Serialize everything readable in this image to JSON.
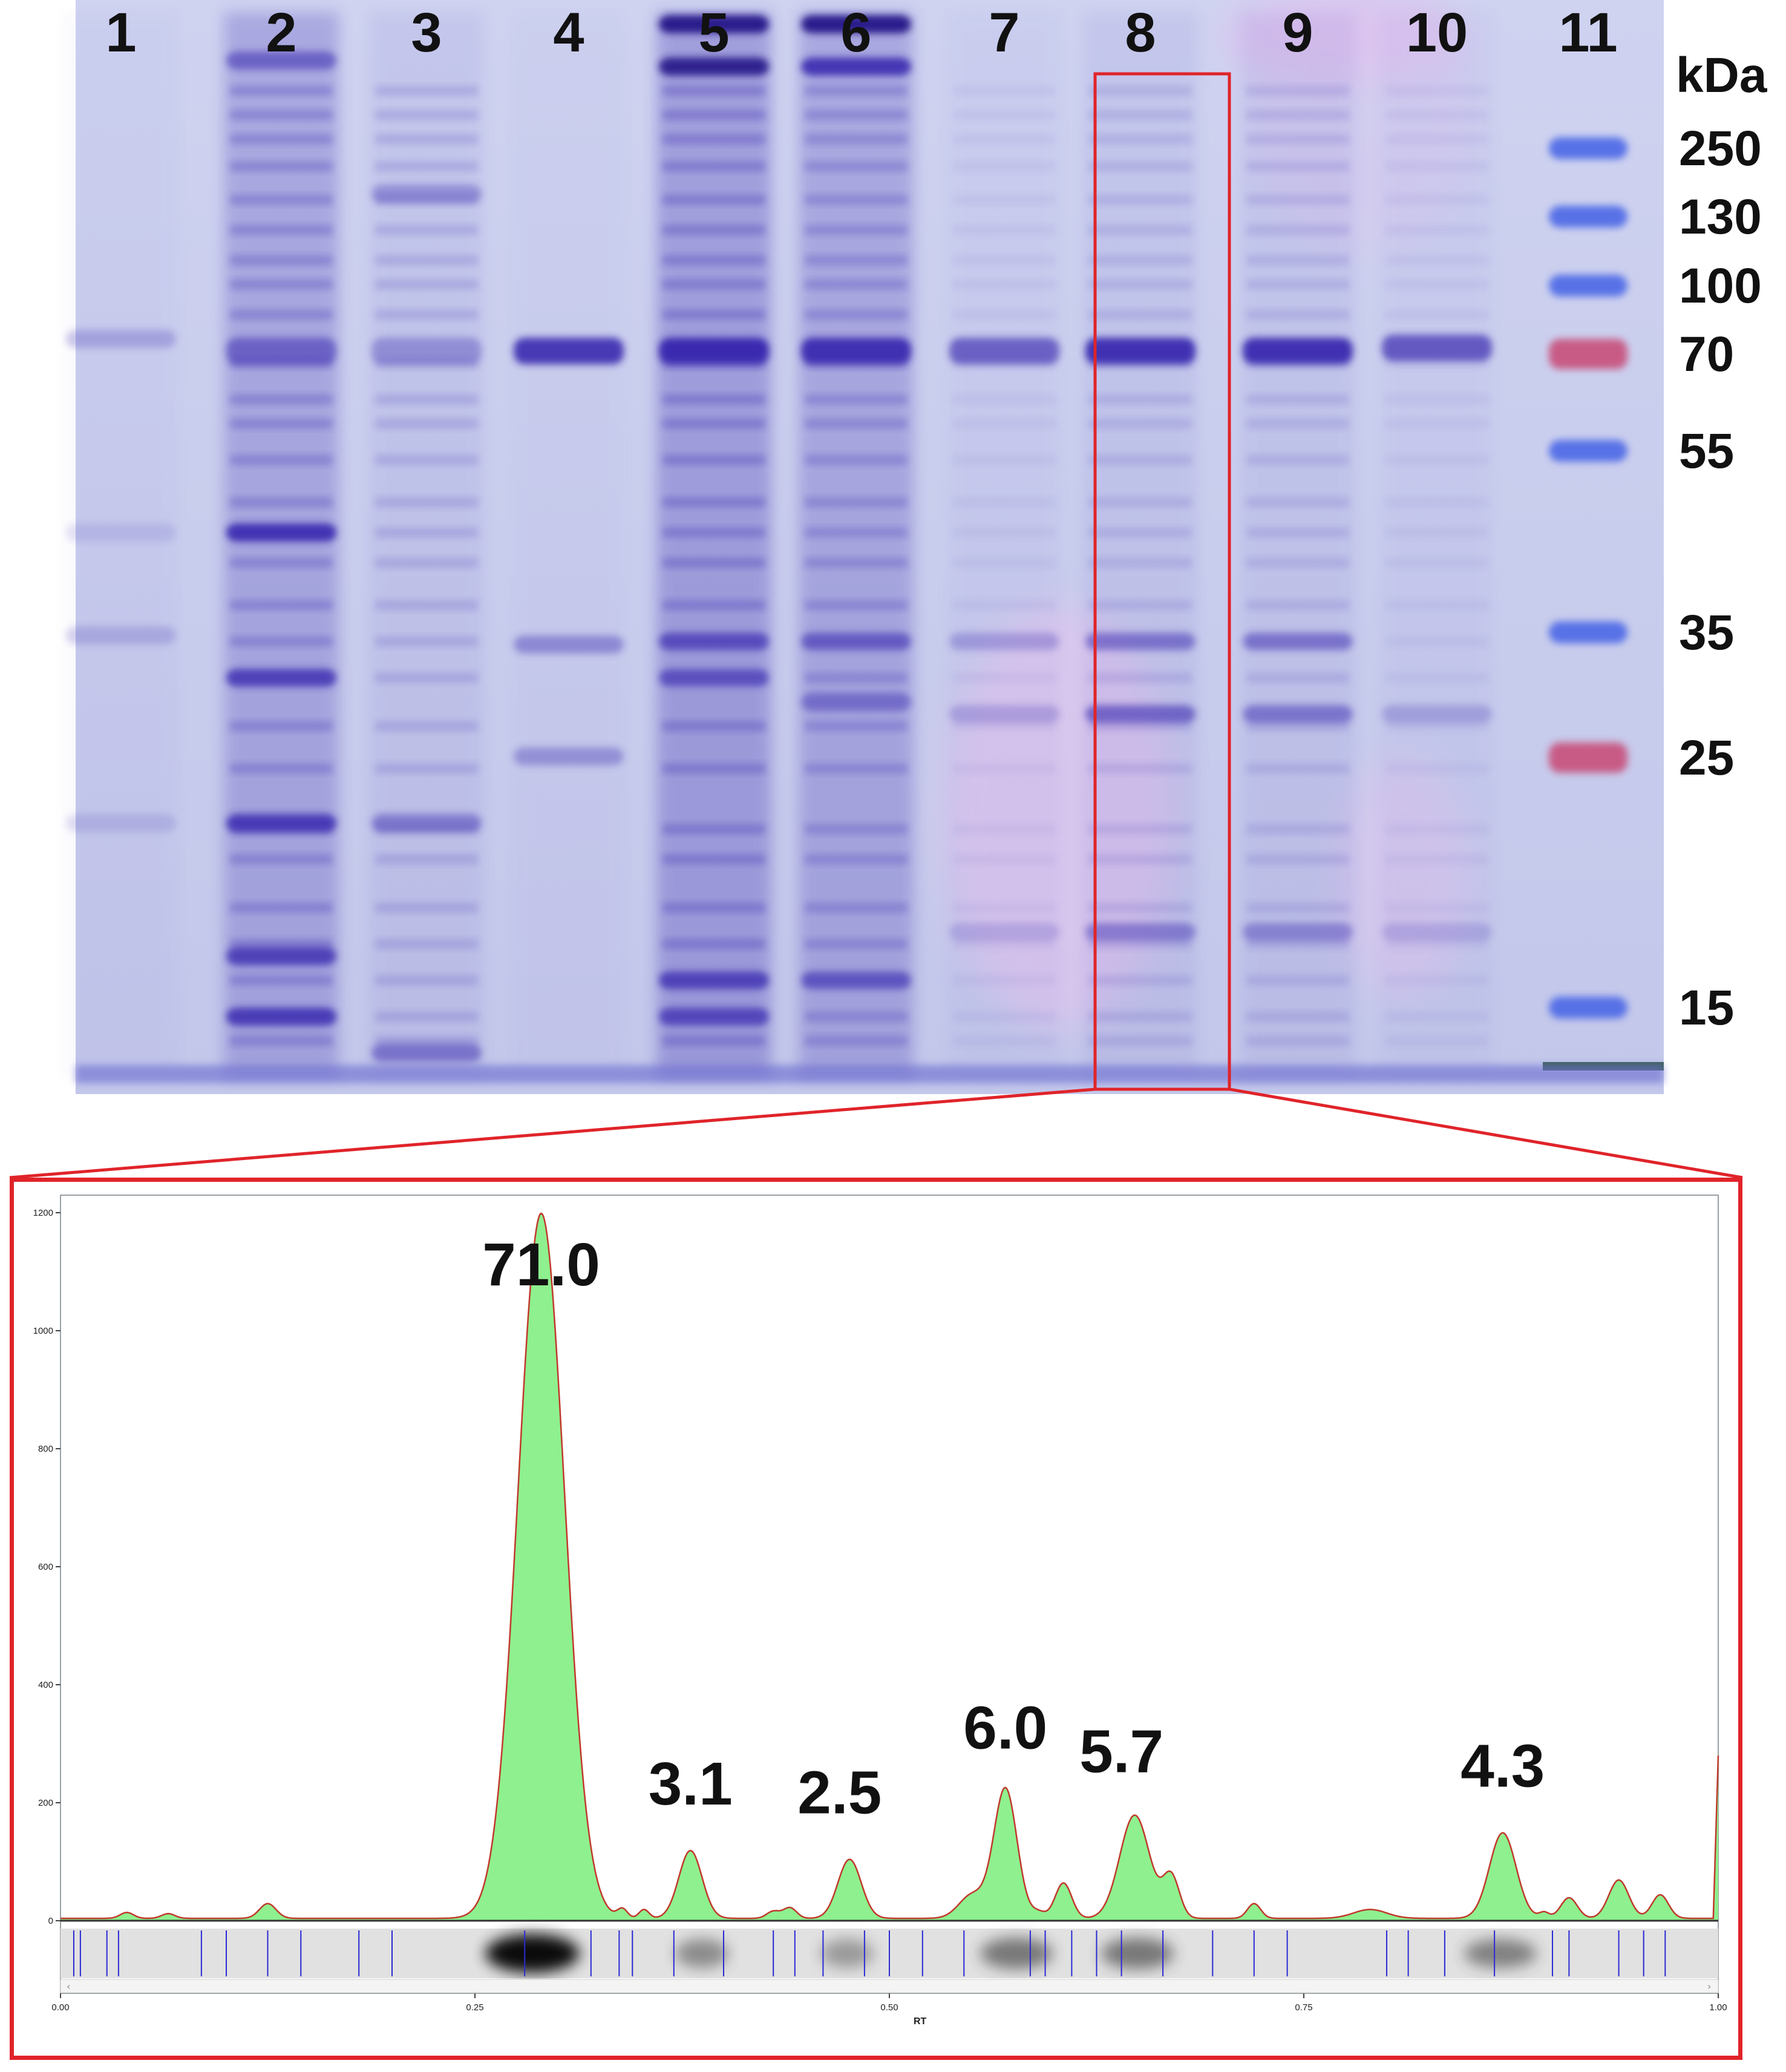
{
  "gel": {
    "lane_labels": [
      "1",
      "2",
      "3",
      "4",
      "5",
      "6",
      "7",
      "8",
      "9",
      "10",
      "11"
    ],
    "marker_unit": "kDa",
    "marker_labels": [
      "250",
      "130",
      "100",
      "70",
      "55",
      "35",
      "25",
      "15"
    ],
    "colors": {
      "gel_background": "#c7ccec",
      "stain": "#3a2ab0",
      "marker_blue": "#4b67e6",
      "marker_red": "#c8507a",
      "highlight_box": "#e0242a"
    }
  },
  "densitometry": {
    "peak_labels": [
      "71.0",
      "3.1",
      "2.5",
      "6.0",
      "5.7",
      "4.3"
    ],
    "y_ticks": [
      "0",
      "200",
      "400",
      "600",
      "800",
      "1000",
      "1200"
    ],
    "x_ticks": [
      "0.00",
      "0.25",
      "0.50",
      "0.75",
      "1.00"
    ],
    "x_axis_label": "RT",
    "colors": {
      "fill": "#8ef08e",
      "line": "#c0392b"
    }
  },
  "chart_data": {
    "type": "area",
    "title": "",
    "xlabel": "RT",
    "ylabel": "",
    "xlim": [
      0,
      1
    ],
    "ylim": [
      0,
      1200
    ],
    "grid": false,
    "legend": "none",
    "series": [
      {
        "x": [
          0.0,
          0.04,
          0.06,
          0.12,
          0.25,
          0.27,
          0.29,
          0.31,
          0.33,
          0.38,
          0.4,
          0.45,
          0.47,
          0.49,
          0.55,
          0.57,
          0.59,
          0.62,
          0.64,
          0.66,
          0.68,
          0.85,
          0.87,
          0.89,
          0.94,
          1.0
        ],
        "y": [
          5,
          12,
          10,
          25,
          15,
          300,
          1200,
          320,
          10,
          115,
          15,
          10,
          100,
          10,
          40,
          220,
          15,
          80,
          175,
          60,
          8,
          10,
          145,
          10,
          50,
          280
        ]
      }
    ],
    "annotations": [
      {
        "x": 0.29,
        "y": 1200,
        "label": "71.0"
      },
      {
        "x": 0.38,
        "y": 115,
        "label": "3.1"
      },
      {
        "x": 0.47,
        "y": 100,
        "label": "2.5"
      },
      {
        "x": 0.57,
        "y": 220,
        "label": "6.0"
      },
      {
        "x": 0.64,
        "y": 175,
        "label": "5.7"
      },
      {
        "x": 0.87,
        "y": 145,
        "label": "4.3"
      }
    ]
  }
}
